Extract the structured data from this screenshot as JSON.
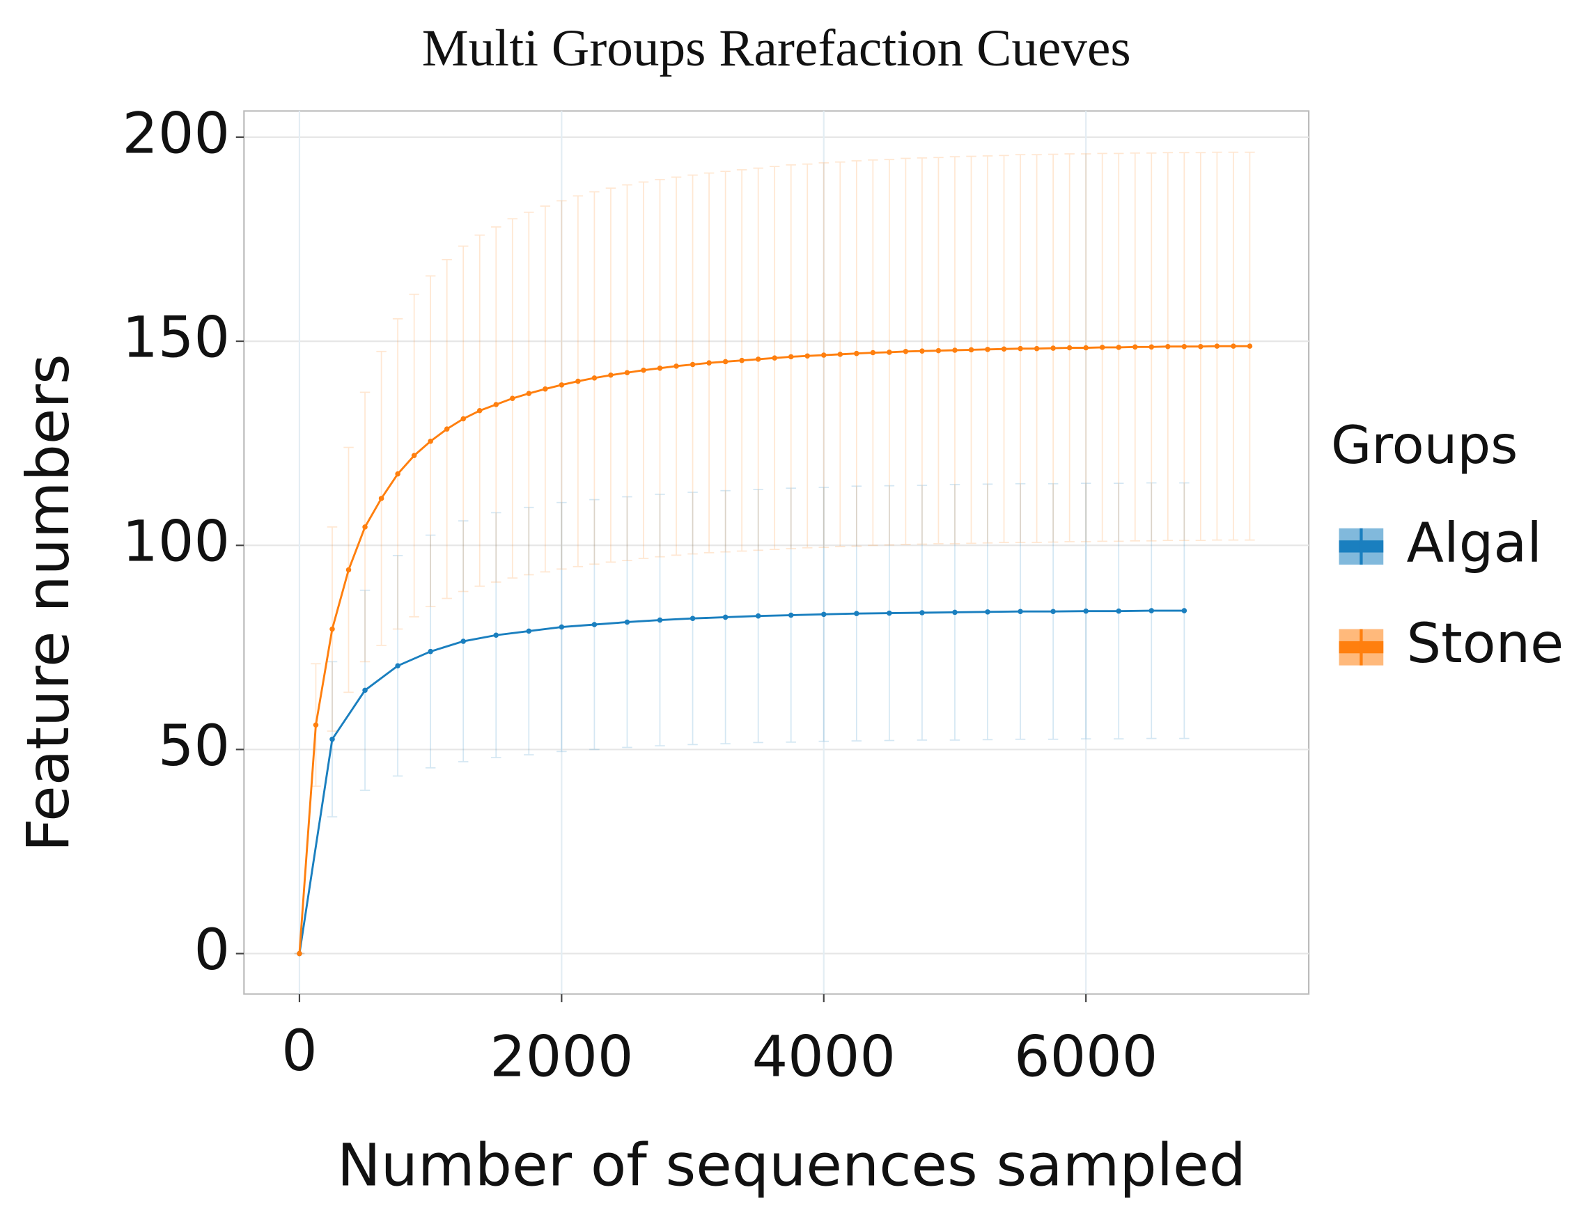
{
  "chart_data": {
    "type": "line",
    "title": "Multi Groups Rarefaction Cueves",
    "x_label": "Number of sequences sampled",
    "y_label": "Feature numbers",
    "legend_title": "Groups",
    "legend_position": "right",
    "grid": true,
    "xlim": [
      -423,
      7700
    ],
    "ylim": [
      -9.9,
      206.4
    ],
    "xticks": [
      0,
      2000,
      4000,
      6000
    ],
    "yticks": [
      0,
      50,
      100,
      150,
      200
    ],
    "series": [
      {
        "name": "Algal",
        "color": "#1a7fbf",
        "x": [
          0,
          250,
          500,
          750,
          1000,
          1250,
          1500,
          1750,
          2000,
          2250,
          2500,
          2750,
          3000,
          3250,
          3500,
          3750,
          4000,
          4250,
          4500,
          4750,
          5000,
          5250,
          5500,
          5750,
          6000,
          6250,
          6500,
          6750
        ],
        "values": [
          0,
          52.5,
          64.5,
          70.5,
          74,
          76.5,
          78,
          79,
          80,
          80.6,
          81.2,
          81.7,
          82.1,
          82.4,
          82.7,
          82.9,
          83.1,
          83.3,
          83.4,
          83.5,
          83.6,
          83.7,
          83.8,
          83.8,
          83.9,
          83.9,
          84,
          84
        ],
        "errors": [
          0,
          19,
          24.5,
          27,
          28.5,
          29.5,
          30,
          30.3,
          30.5,
          30.6,
          30.7,
          30.8,
          30.9,
          31,
          31,
          31.1,
          31.1,
          31.2,
          31.2,
          31.2,
          31.3,
          31.3,
          31.3,
          31.3,
          31.3,
          31.3,
          31.3,
          31.3
        ]
      },
      {
        "name": "Stone",
        "color": "#ff7f0e",
        "x": [
          0,
          125,
          250,
          375,
          500,
          625,
          750,
          875,
          1000,
          1125,
          1250,
          1375,
          1500,
          1625,
          1750,
          1875,
          2000,
          2125,
          2250,
          2375,
          2500,
          2625,
          2750,
          2875,
          3000,
          3125,
          3250,
          3375,
          3500,
          3625,
          3750,
          3875,
          4000,
          4125,
          4250,
          4375,
          4500,
          4625,
          4750,
          4875,
          5000,
          5125,
          5250,
          5375,
          5500,
          5625,
          5750,
          5875,
          6000,
          6125,
          6250,
          6375,
          6500,
          6625,
          6750,
          6875,
          7000,
          7125,
          7250
        ],
        "values": [
          0,
          56,
          79.5,
          94,
          104.5,
          111.5,
          117.5,
          122,
          125.5,
          128.5,
          131,
          133,
          134.5,
          136,
          137.2,
          138.3,
          139.3,
          140.2,
          141,
          141.7,
          142.3,
          142.9,
          143.4,
          143.9,
          144.3,
          144.7,
          145,
          145.3,
          145.6,
          145.9,
          146.2,
          146.4,
          146.6,
          146.8,
          147,
          147.2,
          147.3,
          147.5,
          147.6,
          147.7,
          147.8,
          147.9,
          148,
          148.1,
          148.2,
          148.2,
          148.3,
          148.4,
          148.4,
          148.5,
          148.5,
          148.6,
          148.6,
          148.7,
          148.7,
          148.7,
          148.8,
          148.8,
          148.8
        ],
        "errors": [
          0,
          15,
          25,
          30,
          33,
          36,
          38,
          39.5,
          40.5,
          41.5,
          42.3,
          43,
          43.5,
          44,
          44.4,
          44.8,
          45.1,
          45.4,
          45.6,
          45.8,
          46,
          46.1,
          46.2,
          46.3,
          46.4,
          46.5,
          46.6,
          46.7,
          46.8,
          46.9,
          47,
          47,
          47.1,
          47.1,
          47.2,
          47.2,
          47.2,
          47.3,
          47.3,
          47.3,
          47.4,
          47.4,
          47.4,
          47.4,
          47.5,
          47.5,
          47.5,
          47.5,
          47.5,
          47.5,
          47.5,
          47.5,
          47.5,
          47.5,
          47.5,
          47.5,
          47.5,
          47.5,
          47.5
        ]
      }
    ]
  }
}
